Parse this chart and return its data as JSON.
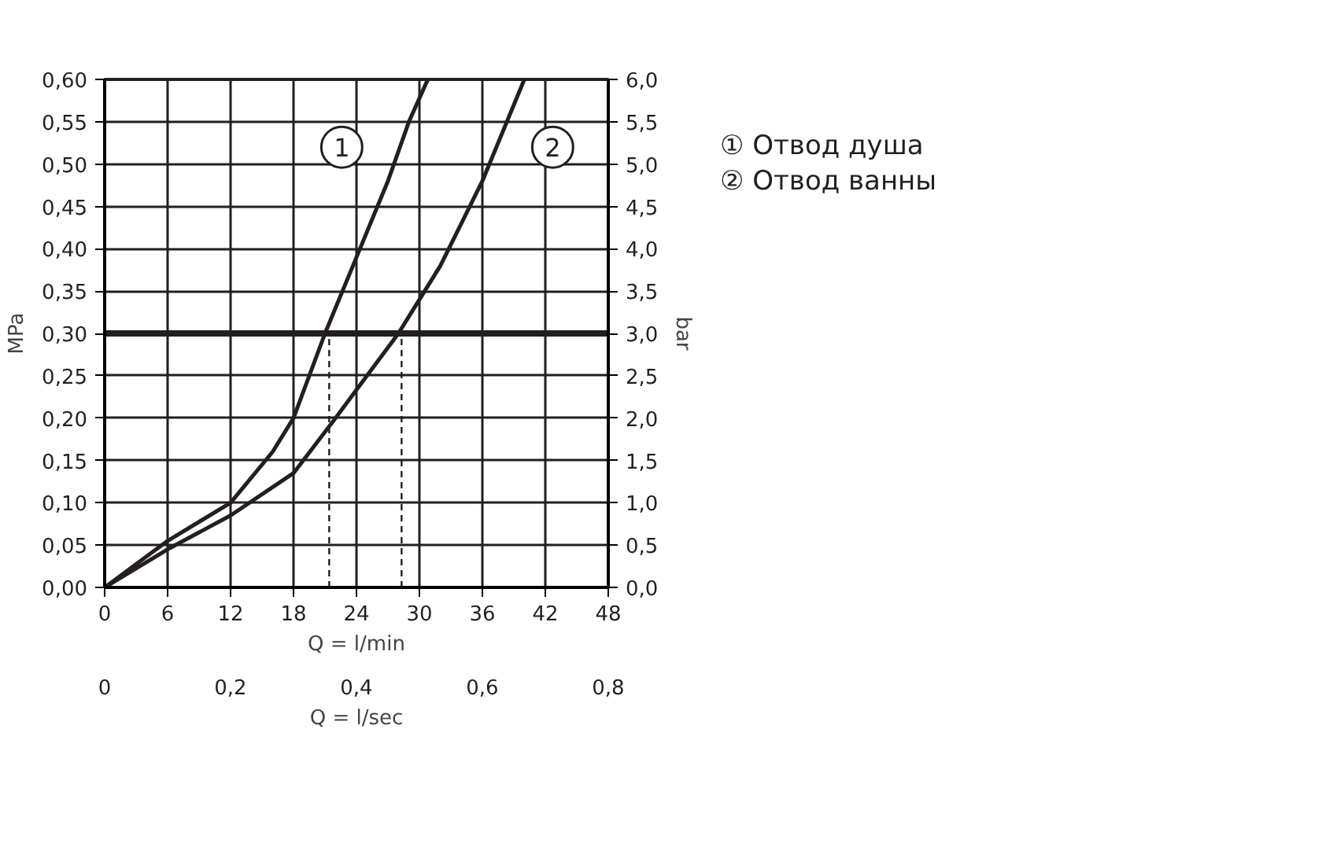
{
  "chart_data": {
    "type": "line",
    "xlabel": "Q = l/min",
    "x2label": "Q = l/sec",
    "ylabel": "MPa",
    "y2label": "bar",
    "xlim": [
      0,
      48
    ],
    "xticks": [
      0,
      6,
      12,
      18,
      24,
      30,
      36,
      42,
      48
    ],
    "x2lim": [
      0,
      0.8
    ],
    "x2ticks": [
      0,
      {
        "value": 0.2,
        "label": "0,2"
      },
      {
        "value": 0.4,
        "label": "0,4"
      },
      {
        "value": 0.6,
        "label": "0,6"
      },
      {
        "value": 0.8,
        "label": "0,8"
      }
    ],
    "ylim": [
      0,
      0.6
    ],
    "yticks": [
      {
        "value": 0,
        "label": "0,00"
      },
      {
        "value": 0.05,
        "label": "0,05"
      },
      {
        "value": 0.1,
        "label": "0,10"
      },
      {
        "value": 0.15,
        "label": "0,15"
      },
      {
        "value": 0.2,
        "label": "0,20"
      },
      {
        "value": 0.25,
        "label": "0,25"
      },
      {
        "value": 0.3,
        "label": "0,30"
      },
      {
        "value": 0.35,
        "label": "0,35"
      },
      {
        "value": 0.4,
        "label": "0,40"
      },
      {
        "value": 0.45,
        "label": "0,45"
      },
      {
        "value": 0.5,
        "label": "0,50"
      },
      {
        "value": 0.55,
        "label": "0,55"
      },
      {
        "value": 0.6,
        "label": "0,60"
      }
    ],
    "y2lim": [
      0,
      6
    ],
    "y2ticks": [
      {
        "value": 0,
        "label": "0,0"
      },
      {
        "value": 0.5,
        "label": "0,5"
      },
      {
        "value": 1,
        "label": "1,0"
      },
      {
        "value": 1.5,
        "label": "1,5"
      },
      {
        "value": 2,
        "label": "2,0"
      },
      {
        "value": 2.5,
        "label": "2,5"
      },
      {
        "value": 3,
        "label": "3,0"
      },
      {
        "value": 3.5,
        "label": "3,5"
      },
      {
        "value": 4,
        "label": "4,0"
      },
      {
        "value": 4.5,
        "label": "4,5"
      },
      {
        "value": 5,
        "label": "5,0"
      },
      {
        "value": 5.5,
        "label": "5,5"
      },
      {
        "value": 6,
        "label": "6,0"
      }
    ],
    "grid": true,
    "legend": "right",
    "line_style": "solid",
    "series": [
      {
        "name": "① Отвод душа",
        "color": "#231f20",
        "x": [
          0,
          6,
          12,
          16,
          18,
          21,
          24,
          27,
          29,
          30.8
        ],
        "values": [
          0,
          0.055,
          0.1,
          0.16,
          0.2,
          0.3,
          0.39,
          0.48,
          0.55,
          0.6
        ]
      },
      {
        "name": "② Отвод ванны",
        "color": "#231f20",
        "x": [
          0,
          6,
          12,
          18,
          22,
          25,
          28,
          32,
          36,
          40
        ],
        "values": [
          0,
          0.045,
          0.085,
          0.135,
          0.2,
          0.25,
          0.3,
          0.38,
          0.48,
          0.6
        ]
      }
    ],
    "ref_lines": [
      {
        "axis": "y",
        "value": 0.3,
        "color": "#231f20",
        "line_style": "solid"
      },
      {
        "axis": "x",
        "value": 21.4,
        "color": "#231f20",
        "line_style": "dashed"
      },
      {
        "axis": "x",
        "value": 28.3,
        "color": "#231f20",
        "line_style": "dashed"
      }
    ],
    "annotations": [
      {
        "text": "1",
        "x": 22.6,
        "y": 0.52
      },
      {
        "text": "2",
        "x": 42.7,
        "y": 0.52
      }
    ]
  }
}
